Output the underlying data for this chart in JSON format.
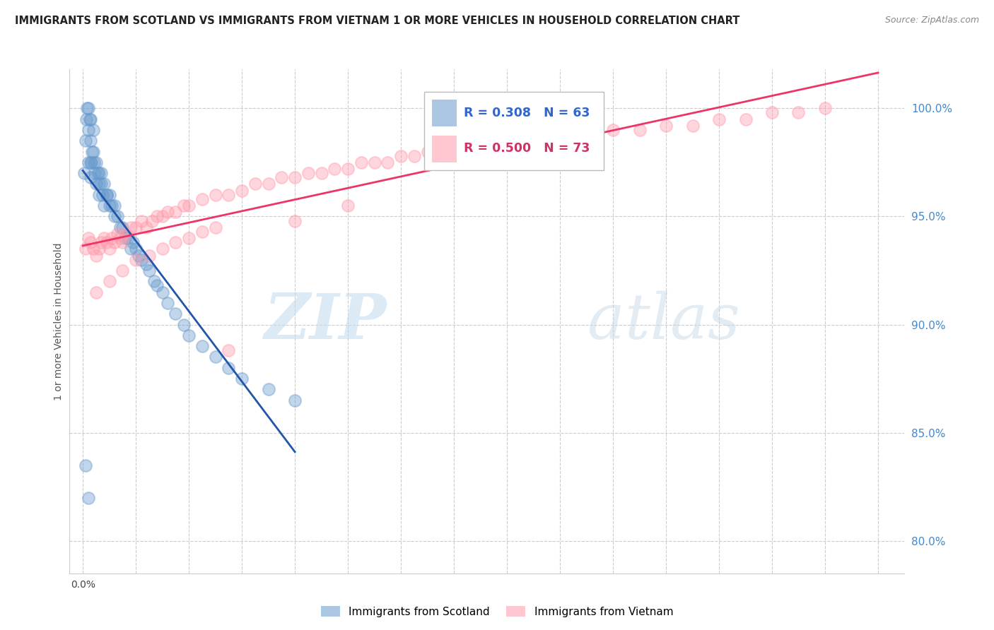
{
  "title": "IMMIGRANTS FROM SCOTLAND VS IMMIGRANTS FROM VIETNAM 1 OR MORE VEHICLES IN HOUSEHOLD CORRELATION CHART",
  "source": "Source: ZipAtlas.com",
  "ylabel": "1 or more Vehicles in Household",
  "scotland_color": "#6699cc",
  "vietnam_color": "#ff99aa",
  "scotland_line_color": "#2255aa",
  "vietnam_line_color": "#ee3366",
  "scotland_R": 0.308,
  "scotland_N": 63,
  "vietnam_R": 0.5,
  "vietnam_N": 73,
  "watermark_zip": "ZIP",
  "watermark_atlas": "atlas",
  "ytick_labels": [
    "80.0%",
    "85.0%",
    "90.0%",
    "95.0%",
    "100.0%"
  ],
  "ytick_values": [
    0.8,
    0.85,
    0.9,
    0.95,
    1.0
  ],
  "scotland_points_x": [
    0.0005,
    0.001,
    0.0012,
    0.0015,
    0.002,
    0.002,
    0.0022,
    0.0025,
    0.003,
    0.003,
    0.003,
    0.0032,
    0.0035,
    0.004,
    0.004,
    0.0042,
    0.0045,
    0.005,
    0.005,
    0.0055,
    0.006,
    0.006,
    0.0062,
    0.007,
    0.007,
    0.0075,
    0.008,
    0.008,
    0.009,
    0.009,
    0.01,
    0.01,
    0.011,
    0.012,
    0.012,
    0.013,
    0.014,
    0.015,
    0.016,
    0.017,
    0.018,
    0.019,
    0.02,
    0.021,
    0.022,
    0.024,
    0.025,
    0.027,
    0.028,
    0.03,
    0.032,
    0.035,
    0.038,
    0.04,
    0.045,
    0.05,
    0.055,
    0.06,
    0.07,
    0.08,
    0.001,
    0.002,
    0.003
  ],
  "scotland_points_y": [
    0.97,
    0.985,
    0.995,
    1.0,
    0.99,
    1.0,
    0.975,
    0.995,
    0.985,
    0.975,
    0.995,
    0.975,
    0.98,
    0.98,
    0.99,
    0.975,
    0.97,
    0.975,
    0.965,
    0.97,
    0.965,
    0.97,
    0.96,
    0.965,
    0.97,
    0.96,
    0.965,
    0.955,
    0.96,
    0.96,
    0.955,
    0.96,
    0.955,
    0.95,
    0.955,
    0.95,
    0.945,
    0.945,
    0.94,
    0.94,
    0.935,
    0.938,
    0.935,
    0.932,
    0.93,
    0.928,
    0.925,
    0.92,
    0.918,
    0.915,
    0.91,
    0.905,
    0.9,
    0.895,
    0.89,
    0.885,
    0.88,
    0.875,
    0.87,
    0.865,
    0.835,
    0.82,
    0.968
  ],
  "vietnam_points_x": [
    0.001,
    0.002,
    0.003,
    0.004,
    0.005,
    0.006,
    0.007,
    0.008,
    0.009,
    0.01,
    0.011,
    0.012,
    0.013,
    0.014,
    0.015,
    0.016,
    0.018,
    0.02,
    0.022,
    0.024,
    0.026,
    0.028,
    0.03,
    0.032,
    0.035,
    0.038,
    0.04,
    0.045,
    0.05,
    0.055,
    0.06,
    0.065,
    0.07,
    0.075,
    0.08,
    0.085,
    0.09,
    0.095,
    0.1,
    0.105,
    0.11,
    0.115,
    0.12,
    0.125,
    0.13,
    0.14,
    0.15,
    0.16,
    0.17,
    0.18,
    0.19,
    0.2,
    0.21,
    0.22,
    0.23,
    0.24,
    0.25,
    0.26,
    0.27,
    0.28,
    0.005,
    0.01,
    0.015,
    0.02,
    0.025,
    0.03,
    0.035,
    0.04,
    0.045,
    0.05,
    0.055,
    0.08,
    0.1
  ],
  "vietnam_points_y": [
    0.935,
    0.94,
    0.938,
    0.935,
    0.932,
    0.935,
    0.938,
    0.94,
    0.938,
    0.935,
    0.94,
    0.938,
    0.942,
    0.94,
    0.938,
    0.942,
    0.945,
    0.945,
    0.948,
    0.945,
    0.948,
    0.95,
    0.95,
    0.952,
    0.952,
    0.955,
    0.955,
    0.958,
    0.96,
    0.96,
    0.962,
    0.965,
    0.965,
    0.968,
    0.968,
    0.97,
    0.97,
    0.972,
    0.972,
    0.975,
    0.975,
    0.975,
    0.978,
    0.978,
    0.98,
    0.982,
    0.982,
    0.985,
    0.985,
    0.988,
    0.988,
    0.99,
    0.99,
    0.992,
    0.992,
    0.995,
    0.995,
    0.998,
    0.998,
    1.0,
    0.915,
    0.92,
    0.925,
    0.93,
    0.932,
    0.935,
    0.938,
    0.94,
    0.943,
    0.945,
    0.888,
    0.948,
    0.955
  ]
}
